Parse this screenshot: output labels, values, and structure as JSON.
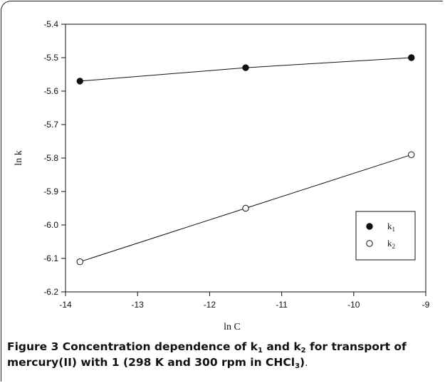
{
  "figure": {
    "label": "Figure 3",
    "caption_parts": [
      {
        "text": " Concentration dependence of k",
        "style": "bold"
      },
      {
        "text": "1",
        "style": "bold-sub"
      },
      {
        "text": " and k",
        "style": "bold"
      },
      {
        "text": "2",
        "style": "bold-sub"
      },
      {
        "text": " for transport of mercury(II) with 1 (298 K and 300 rpm in CHCl",
        "style": "bold"
      },
      {
        "text": "3",
        "style": "bold-sub"
      },
      {
        "text": ")",
        "style": "bold"
      },
      {
        "text": ".",
        "style": "normal"
      }
    ]
  },
  "chart_data": {
    "type": "scatter",
    "xlabel": "ln C",
    "ylabel": "ln k",
    "xlim": [
      -14,
      -9
    ],
    "ylim": [
      -6.2,
      -5.4
    ],
    "xticks": [
      -14,
      -13,
      -12,
      -11,
      -10,
      -9
    ],
    "yticks": [
      -5.4,
      -5.5,
      -5.6,
      -5.7,
      -5.8,
      -5.9,
      -6.0,
      -6.1,
      -6.2
    ],
    "xtick_labels": [
      "-14",
      "-13",
      "-12",
      "-11",
      "-10",
      "-9"
    ],
    "ytick_labels": [
      "-5.4",
      "-5.5",
      "-5.6",
      "-5.7",
      "-5.8",
      "-5.9",
      "-6.0",
      "-6.1",
      "-6.2"
    ],
    "grid": false,
    "legend_position": "lower-right",
    "series": [
      {
        "name": "k1",
        "legend_base": "k",
        "legend_sub": "1",
        "marker": "filled-circle",
        "color": "#111111",
        "x": [
          -13.8,
          -11.5,
          -9.2
        ],
        "y": [
          -5.57,
          -5.53,
          -5.5
        ],
        "fit_line": true
      },
      {
        "name": "k2",
        "legend_base": "k",
        "legend_sub": "2",
        "marker": "open-circle",
        "color": "#111111",
        "x": [
          -13.8,
          -11.5,
          -9.2
        ],
        "y": [
          -6.11,
          -5.95,
          -5.79
        ],
        "fit_line": true
      }
    ]
  }
}
